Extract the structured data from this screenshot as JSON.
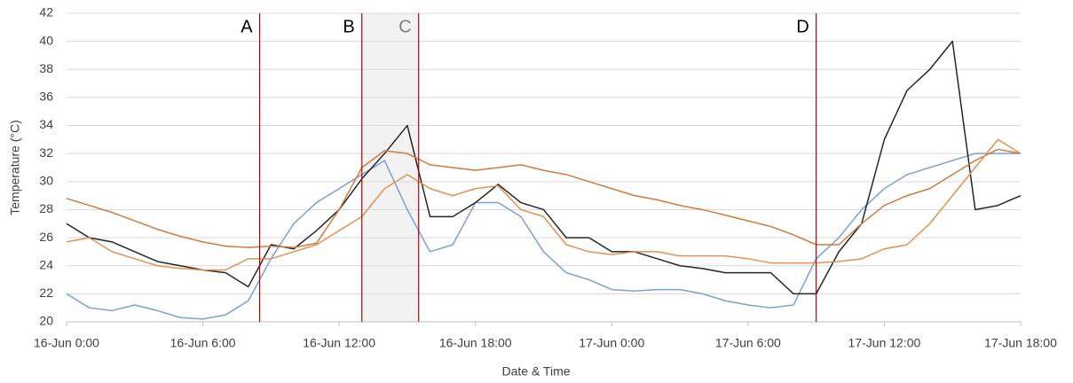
{
  "chart_data": {
    "type": "line",
    "xlabel": "Date & Time",
    "ylabel": "Temperature (°C)",
    "x": [
      0,
      1,
      2,
      3,
      4,
      5,
      6,
      7,
      8,
      9,
      10,
      11,
      12,
      13,
      14,
      15,
      16,
      17,
      18,
      19,
      20,
      21,
      22,
      23,
      24,
      25,
      26,
      27,
      28,
      29,
      30,
      31,
      32,
      33,
      34,
      35,
      36,
      37,
      38,
      39,
      40,
      41,
      42
    ],
    "series": [
      {
        "color": "#7b9fd8",
        "values": [
          22,
          21,
          20.8,
          21.2,
          20.8,
          20.3,
          20.2,
          20.5,
          21.5,
          24.5,
          27,
          28.5,
          29.5,
          30.5,
          31.5,
          28,
          25,
          25.5,
          28.5,
          28.5,
          27.5,
          25,
          23.5,
          23,
          22.3,
          22.2,
          22.3,
          22.3,
          22,
          21.5,
          21.2,
          21,
          21.2,
          24.5,
          26,
          28,
          29.5,
          30.5,
          31,
          31.5,
          32,
          32,
          32
        ]
      },
      {
        "color": "#262626",
        "values": [
          27,
          26,
          25.7,
          25,
          24.3,
          24,
          23.7,
          23.5,
          22.5,
          25.5,
          25.2,
          26.5,
          28,
          30.2,
          32,
          34,
          27.5,
          27.5,
          28.5,
          29.8,
          28.5,
          28,
          26,
          26,
          25,
          25,
          24.5,
          24,
          23.8,
          23.5,
          23.5,
          23.5,
          22,
          22,
          25,
          27,
          33,
          36.5,
          38,
          40,
          28,
          28.3,
          29
        ]
      },
      {
        "color": "#cf7b3e",
        "values": [
          28.8,
          28.3,
          27.8,
          27.2,
          26.6,
          26.1,
          25.7,
          25.4,
          25.3,
          25.4,
          25.3,
          25.6,
          28,
          31,
          32.2,
          32,
          31.2,
          31,
          30.8,
          31,
          31.2,
          30.8,
          30.5,
          30,
          29.5,
          29,
          28.7,
          28.3,
          28,
          27.6,
          27.2,
          26.8,
          26.2,
          25.5,
          25.5,
          27,
          28.3,
          29,
          29.5,
          30.5,
          31.5,
          32.3,
          32
        ]
      },
      {
        "color": "#e39152",
        "values": [
          25.7,
          26,
          25,
          24.5,
          24,
          23.8,
          23.7,
          23.7,
          24.5,
          24.5,
          25,
          25.5,
          26.5,
          27.5,
          29.5,
          30.5,
          29.5,
          29,
          29.5,
          29.7,
          28,
          27.5,
          25.5,
          25,
          24.8,
          25,
          25,
          24.7,
          24.7,
          24.7,
          24.5,
          24.2,
          24.2,
          24.2,
          24.3,
          24.5,
          25.2,
          25.5,
          27,
          29,
          31,
          33,
          32
        ]
      }
    ],
    "xlim": [
      0,
      42
    ],
    "xticks": [
      {
        "value": 0,
        "label": "16-Jun 0:00"
      },
      {
        "value": 6,
        "label": "16-Jun 6:00"
      },
      {
        "value": 12,
        "label": "16-Jun 12:00"
      },
      {
        "value": 18,
        "label": "16-Jun 18:00"
      },
      {
        "value": 24,
        "label": "17-Jun 0:00"
      },
      {
        "value": 30,
        "label": "17-Jun 6:00"
      },
      {
        "value": 36,
        "label": "17-Jun 12:00"
      },
      {
        "value": 42,
        "label": "17-Jun 18:00"
      }
    ],
    "ylim": [
      20,
      42
    ],
    "yticks": [
      20,
      22,
      24,
      26,
      28,
      30,
      32,
      34,
      36,
      38,
      40,
      42
    ],
    "grid": true,
    "annotations": [
      {
        "label": "A",
        "x": 8.5,
        "color": "#000000"
      },
      {
        "label": "B",
        "x": 13,
        "color": "#000000"
      },
      {
        "label": "C",
        "x": 15.5,
        "color": "#7f7f7f"
      },
      {
        "label": "D",
        "x": 33,
        "color": "#000000"
      }
    ],
    "span": [
      13,
      15.5
    ]
  }
}
